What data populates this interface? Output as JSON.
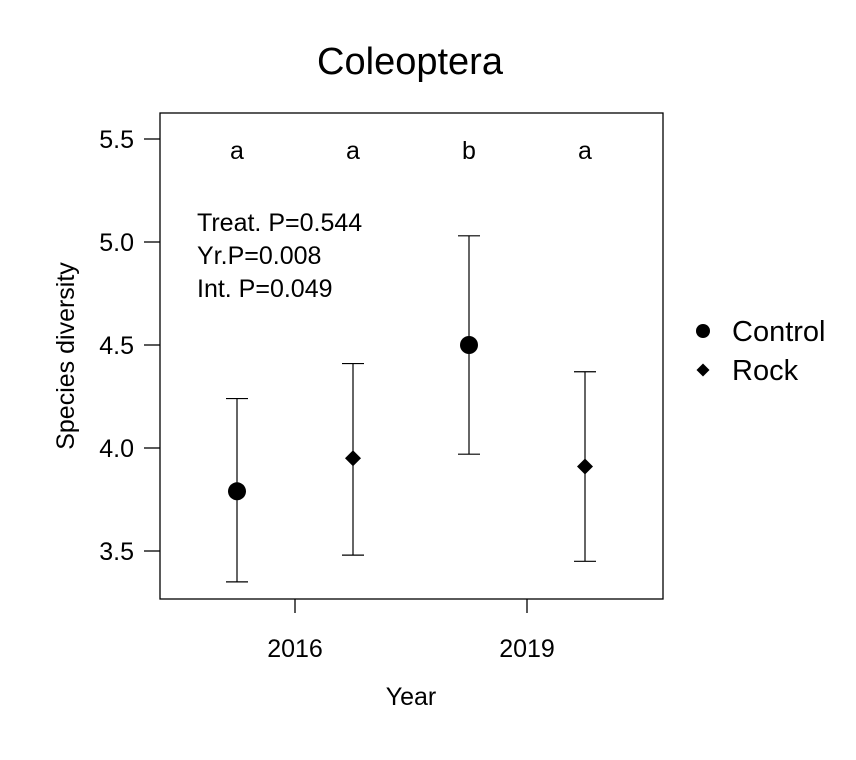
{
  "chart_data": {
    "type": "scatter",
    "title": "Coleoptera",
    "xlabel": "Year",
    "ylabel": "Species diversity",
    "ylim": [
      3.28,
      5.62
    ],
    "yticks": [
      3.5,
      4.0,
      4.5,
      5.0,
      5.5
    ],
    "ytick_labels": [
      "3.5",
      "4.0",
      "4.5",
      "5.0",
      "5.5"
    ],
    "categories": [
      "2016",
      "2019"
    ],
    "grid": false,
    "legend_position": "right",
    "series": [
      {
        "name": "Control",
        "marker": "circle",
        "points": [
          {
            "category": "2016",
            "y": 3.79,
            "lower": 3.35,
            "upper": 4.24,
            "letter": "a"
          },
          {
            "category": "2019",
            "y": 4.5,
            "lower": 3.97,
            "upper": 5.03,
            "letter": "b"
          }
        ]
      },
      {
        "name": "Rock",
        "marker": "diamond",
        "points": [
          {
            "category": "2016",
            "y": 3.95,
            "lower": 3.48,
            "upper": 4.41,
            "letter": "a"
          },
          {
            "category": "2019",
            "y": 3.91,
            "lower": 3.45,
            "upper": 4.37,
            "letter": "a"
          }
        ]
      }
    ],
    "annotations": [
      "Treat. P=0.544",
      "Yr.P=0.008",
      "Int. P=0.049"
    ]
  }
}
